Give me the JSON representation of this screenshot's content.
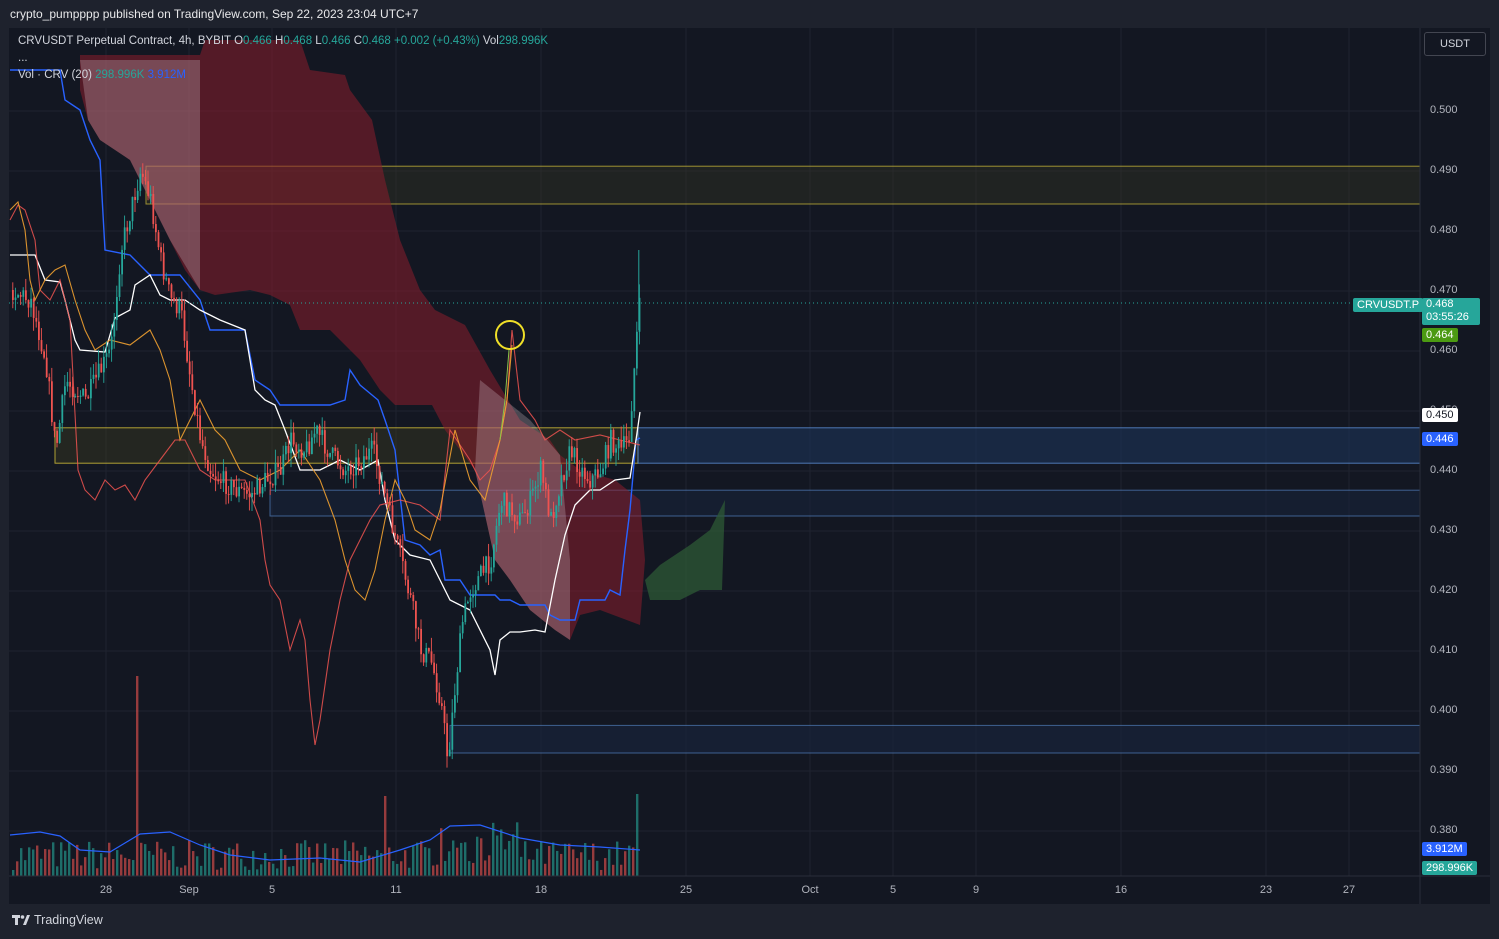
{
  "header": {
    "published": "crypto_pumpppp published on TradingView.com, Sep 22, 2023 23:04 UTC+7"
  },
  "legend": {
    "symbol": "CRVUSDT Perpetual Contract, 4h, BYBIT",
    "o_label": "O",
    "o_value": "0.466",
    "h_label": "H",
    "h_value": "0.468",
    "l_label": "L",
    "l_value": "0.466",
    "c_label": "C",
    "c_value": "0.468",
    "change": "+0.002 (+0.43%)",
    "vol_label": "Vol",
    "vol_value": "298.996K",
    "more": "...",
    "vol_indicator": "Vol · CRV (20)",
    "vol_indicator_value": "298.996K",
    "vol_ma_value": "3.912M"
  },
  "currency_button": "USDT",
  "price_axis": {
    "ticks": [
      "0.500",
      "0.490",
      "0.480",
      "0.470",
      "0.460",
      "0.450",
      "0.440",
      "0.430",
      "0.420",
      "0.410",
      "0.400",
      "0.390",
      "0.380"
    ],
    "badges": {
      "symbol_label": "CRVUSDT.P",
      "last_price": "0.468",
      "countdown": "03:55:26",
      "green_level": "0.464",
      "white_level": "0.450",
      "blue_level": "0.446",
      "vol_ma": "3.912M",
      "vol": "298.996K"
    }
  },
  "time_axis": {
    "ticks": [
      "28",
      "Sep",
      "5",
      "11",
      "18",
      "25",
      "Oct",
      "5",
      "9",
      "16",
      "23",
      "27"
    ]
  },
  "footer": {
    "brand": "TradingView"
  },
  "colors": {
    "up": "#26a69a",
    "down": "#ef5350",
    "cloud_bear": "#8b1e2b",
    "cloud_bull": "#2e5a35",
    "zone_yellow": "#d4c23a",
    "zone_blue": "#5b8fd6",
    "tenkan": "#ffffff",
    "kijun": "#2962ff",
    "lagging": "#ef5350",
    "osc": "#f0a030",
    "marker": "#f0e028"
  },
  "chart_data": {
    "type": "candlestick",
    "symbol": "CRVUSDT.P",
    "interval": "4h",
    "ylim": [
      0.378,
      0.508
    ],
    "x_range_days": [
      "Aug 24",
      "Sep 29"
    ],
    "last": {
      "open": 0.466,
      "high": 0.468,
      "low": 0.466,
      "close": 0.468,
      "volume": "298.996K"
    },
    "volume_ma_20": "3.912M",
    "horizontal_levels": [
      0.468,
      0.464,
      0.45,
      0.446
    ],
    "zones": [
      {
        "name": "supply",
        "from": 0.4845,
        "to": 0.4908
      },
      {
        "name": "zone-mid",
        "from": 0.4413,
        "to": 0.4472
      },
      {
        "name": "zone-low",
        "from": 0.4325,
        "to": 0.4368
      },
      {
        "name": "demand",
        "from": 0.393,
        "to": 0.3976
      }
    ],
    "marker": {
      "label": "circle",
      "price": 0.465,
      "date": "Sep 16"
    }
  }
}
